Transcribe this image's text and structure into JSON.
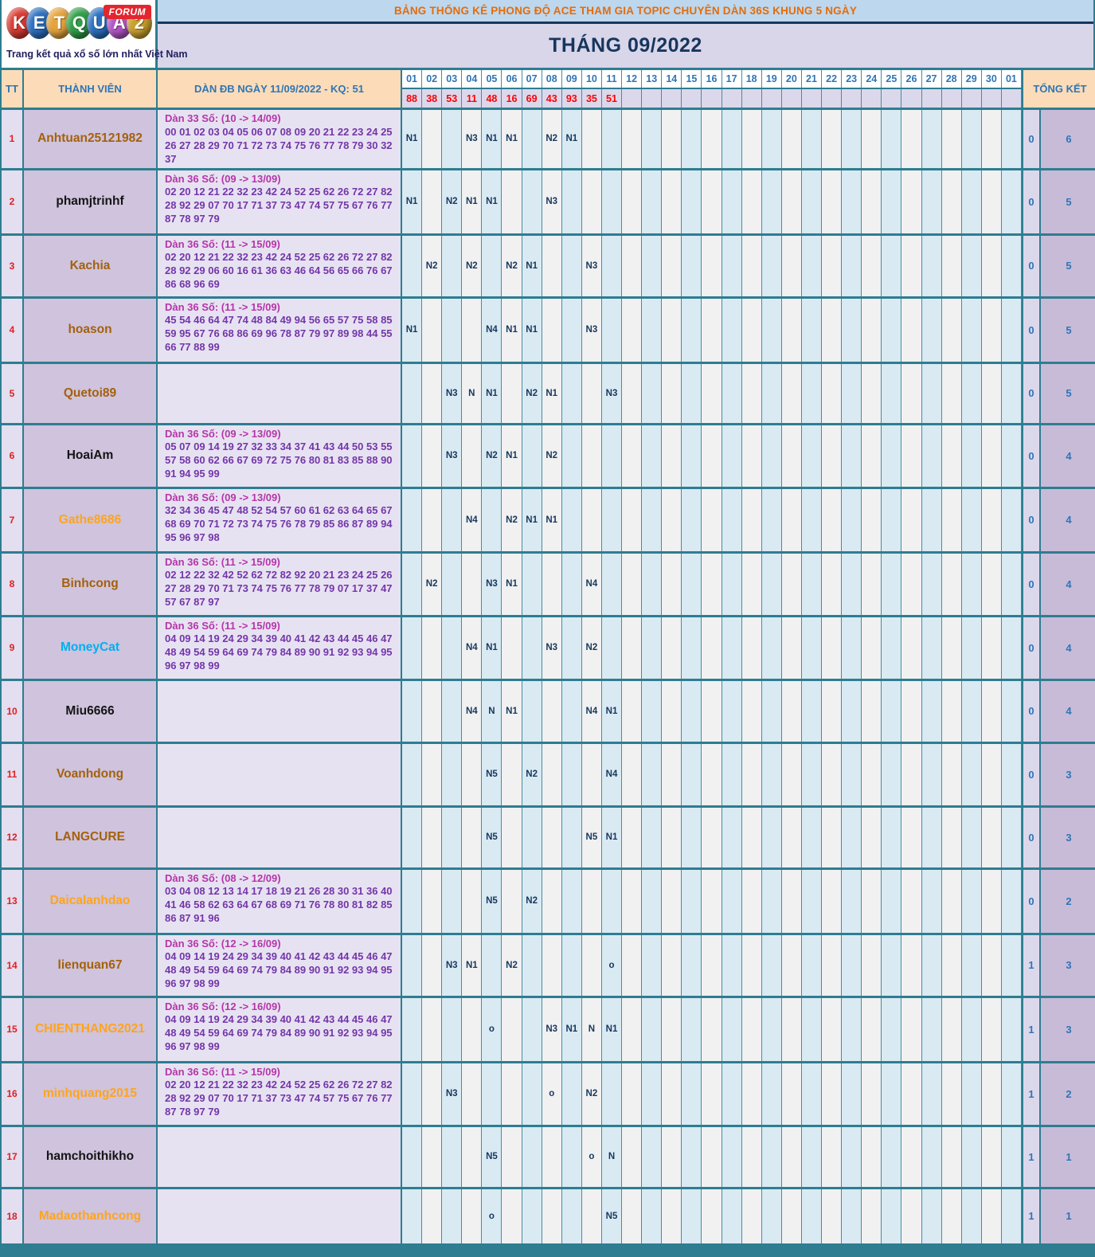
{
  "brand": {
    "logo_letters": [
      {
        "ch": "K",
        "color": "#d93a30"
      },
      {
        "ch": "E",
        "color": "#2b6fc0"
      },
      {
        "ch": "T",
        "color": "#e5a33c"
      },
      {
        "ch": "Q",
        "color": "#2f9e47"
      },
      {
        "ch": "U",
        "color": "#2b6fc0"
      },
      {
        "ch": "A",
        "color": "#b455c8"
      },
      {
        "ch": "2",
        "color": "#c9a02e"
      }
    ],
    "forum_badge": "FORUM",
    "tagline": "Trang kết quả xổ số lớn nhất Việt Nam"
  },
  "banner": {
    "text": "BẢNG THỐNG KÊ PHONG ĐỘ ACE THAM GIA TOPIC CHUYÊN DÀN 36S KHUNG 5 NGÀY"
  },
  "month_title": "THÁNG 09/2022",
  "table": {
    "tt_header": "TT",
    "member_header": "THÀNH VIÊN",
    "dan_header": "DÀN ĐB NGÀY 11/09/2022 - KQ: 51",
    "total_header": "TỔNG KẾT",
    "day_columns": [
      "01",
      "02",
      "03",
      "04",
      "05",
      "06",
      "07",
      "08",
      "09",
      "10",
      "11",
      "12",
      "13",
      "14",
      "15",
      "16",
      "17",
      "18",
      "19",
      "20",
      "21",
      "22",
      "23",
      "24",
      "25",
      "26",
      "27",
      "28",
      "29",
      "30",
      "01"
    ],
    "day_results": [
      "88",
      "38",
      "53",
      "11",
      "48",
      "16",
      "69",
      "43",
      "93",
      "35",
      "51",
      "",
      "",
      "",
      "",
      "",
      "",
      "",
      "",
      "",
      "",
      "",
      "",
      "",
      "",
      "",
      "",
      "",
      "",
      "",
      ""
    ],
    "rows": [
      {
        "tt": "1",
        "member": "Anhtuan25121982",
        "member_color": "#a4610c",
        "dan_title": "Dàn 33 Số: (10 -> 14/09)",
        "dan_numbers": "00 01 02 03 04 05 06 07 08 09 20 21 22 23 24 25 26 27 28 29 70 71 72 73 74 75 76 77 78 79 30 32 37",
        "cells": {
          "1": "N1",
          "4": "N3",
          "5": "N1",
          "6": "N1",
          "8": "N2",
          "9": "N1"
        },
        "total_miss": "0",
        "total_hit": "6"
      },
      {
        "tt": "2",
        "member": "phamjtrinhf",
        "member_color": "#141414",
        "dan_title": "Dàn 36 Số: (09 -> 13/09)",
        "dan_numbers": "02 20 12 21 22 32 23 42 24 52 25 62 26 72 27 82 28 92 29 07 70 17 71 37 73 47 74 57 75 67 76 77 87 78 97 79",
        "cells": {
          "1": "N1",
          "3": "N2",
          "4": "N1",
          "5": "N1",
          "8": "N3"
        },
        "total_miss": "0",
        "total_hit": "5"
      },
      {
        "tt": "3",
        "member": "Kachia",
        "member_color": "#a4610c",
        "dan_title": "Dàn 36 Số: (11 -> 15/09)",
        "dan_numbers": "02 20 12 21 22 32 23 42 24 52 25 62 26 72 27 82 28 92 29 06 60 16 61 36 63 46 64 56 65 66 76 67 86 68 96 69",
        "cells": {
          "2": "N2",
          "4": "N2",
          "6": "N2",
          "7": "N1",
          "10": "N3"
        },
        "total_miss": "0",
        "total_hit": "5"
      },
      {
        "tt": "4",
        "member": "hoason",
        "member_color": "#a4610c",
        "dan_title": "Dàn 36 Số: (11 -> 15/09)",
        "dan_numbers": "45 54 46 64 47 74 48 84 49 94 56 65 57 75 58 85 59 95 67 76 68 86 69 96 78 87 79 97 89 98 44 55 66 77 88 99",
        "cells": {
          "1": "N1",
          "5": "N4",
          "6": "N1",
          "7": "N1",
          "10": "N3"
        },
        "total_miss": "0",
        "total_hit": "5"
      },
      {
        "tt": "5",
        "member": "Quetoi89",
        "member_color": "#a4610c",
        "dan_title": "",
        "dan_numbers": "",
        "cells": {
          "3": "N3",
          "4": "N",
          "5": "N1",
          "7": "N2",
          "8": "N1",
          "11": "N3"
        },
        "total_miss": "0",
        "total_hit": "5"
      },
      {
        "tt": "6",
        "member": "HoaiAm",
        "member_color": "#141414",
        "dan_title": "Dàn 36 Số: (09 -> 13/09)",
        "dan_numbers": "05 07 09 14 19 27 32 33 34 37 41 43 44 50 53 55 57 58 60 62 66 67 69 72 75 76 80 81 83 85 88 90 91 94 95 99",
        "cells": {
          "3": "N3",
          "5": "N2",
          "6": "N1",
          "8": "N2"
        },
        "total_miss": "0",
        "total_hit": "4"
      },
      {
        "tt": "7",
        "member": "Gathe8686",
        "member_color": "#ffa41c",
        "dan_title": "Dàn 36 Số: (09 -> 13/09)",
        "dan_numbers": "32 34 36 45 47 48 52 54 57 60 61 62 63 64 65 67 68 69 70 71 72 73 74 75 76 78 79 85 86 87 89 94 95 96 97 98",
        "cells": {
          "4": "N4",
          "6": "N2",
          "7": "N1",
          "8": "N1"
        },
        "total_miss": "0",
        "total_hit": "4"
      },
      {
        "tt": "8",
        "member": "Binhcong",
        "member_color": "#a4610c",
        "dan_title": "Dàn 36 Số: (11 -> 15/09)",
        "dan_numbers": "02 12 22 32 42 52 62 72 82 92 20 21 23 24 25 26 27 28 29 70 71 73 74 75 76 77 78 79 07 17 37 47 57 67 87 97",
        "cells": {
          "2": "N2",
          "5": "N3",
          "6": "N1",
          "10": "N4"
        },
        "total_miss": "0",
        "total_hit": "4"
      },
      {
        "tt": "9",
        "member": "MoneyCat",
        "member_color": "#00b0f0",
        "dan_title": "Dàn 36 Số: (11 -> 15/09)",
        "dan_numbers": "04 09 14 19 24 29 34 39 40 41 42 43 44 45 46 47 48 49 54 59 64 69 74 79 84 89 90 91 92 93 94 95 96 97 98 99",
        "cells": {
          "4": "N4",
          "5": "N1",
          "8": "N3",
          "10": "N2"
        },
        "total_miss": "0",
        "total_hit": "4"
      },
      {
        "tt": "10",
        "member": "Miu6666",
        "member_color": "#141414",
        "dan_title": "",
        "dan_numbers": "",
        "cells": {
          "4": "N4",
          "5": "N",
          "6": "N1",
          "10": "N4",
          "11": "N1"
        },
        "total_miss": "0",
        "total_hit": "4"
      },
      {
        "tt": "11",
        "member": "Voanhdong",
        "member_color": "#a4610c",
        "dan_title": "",
        "dan_numbers": "",
        "cells": {
          "5": "N5",
          "7": "N2",
          "11": "N4"
        },
        "total_miss": "0",
        "total_hit": "3"
      },
      {
        "tt": "12",
        "member": "LANGCURE",
        "member_color": "#a4610c",
        "dan_title": "",
        "dan_numbers": "",
        "cells": {
          "5": "N5",
          "10": "N5",
          "11": "N1"
        },
        "total_miss": "0",
        "total_hit": "3"
      },
      {
        "tt": "13",
        "member": "Daicalanhdao",
        "member_color": "#ffa41c",
        "dan_title": "Dàn 36 Số: (08 -> 12/09)",
        "dan_numbers": "03 04 08 12 13 14 17 18 19 21 26 28 30 31 36 40 41 46 58 62 63 64 67 68 69 71 76 78 80 81 82 85 86 87 91 96",
        "cells": {
          "5": "N5",
          "7": "N2"
        },
        "total_miss": "0",
        "total_hit": "2"
      },
      {
        "tt": "14",
        "member": "lienquan67",
        "member_color": "#a4610c",
        "dan_title": "Dàn 36 Số: (12 -> 16/09)",
        "dan_numbers": "04 09 14 19 24 29 34 39 40 41 42 43 44 45 46 47 48 49 54 59 64 69 74 79 84 89 90 91 92 93 94 95 96 97 98 99",
        "cells": {
          "3": "N3",
          "4": "N1",
          "6": "N2",
          "11": "o"
        },
        "total_miss": "1",
        "total_hit": "3"
      },
      {
        "tt": "15",
        "member": "CHIENTHANG2021",
        "member_color": "#ffa41c",
        "dan_title": "Dàn 36 Số: (12 -> 16/09)",
        "dan_numbers": "04 09 14 19 24 29 34 39 40 41 42 43 44 45 46 47 48 49 54 59 64 69 74 79 84 89 90 91 92 93 94 95 96 97 98 99",
        "cells": {
          "5": "o",
          "8": "N3",
          "9": "N1",
          "10": "N",
          "11": "N1"
        },
        "total_miss": "1",
        "total_hit": "3"
      },
      {
        "tt": "16",
        "member": "minhquang2015",
        "member_color": "#ffa41c",
        "dan_title": "Dàn 36 Số: (11 -> 15/09)",
        "dan_numbers": "02 20 12 21 22 32 23 42 24 52 25 62 26 72 27 82 28 92 29 07 70 17 71 37 73 47 74 57 75 67 76 77 87 78 97 79",
        "cells": {
          "3": "N3",
          "8": "o",
          "10": "N2"
        },
        "total_miss": "1",
        "total_hit": "2"
      },
      {
        "tt": "17",
        "member": "hamchoithikho",
        "member_color": "#141414",
        "dan_title": "",
        "dan_numbers": "",
        "cells": {
          "5": "N5",
          "10": "o",
          "11": "N"
        },
        "total_miss": "1",
        "total_hit": "1"
      },
      {
        "tt": "18",
        "member": "Madaothanhcong",
        "member_color": "#ffa41c",
        "dan_title": "",
        "dan_numbers": "",
        "cells": {
          "5": "o",
          "11": "N5"
        },
        "total_miss": "1",
        "total_hit": "1"
      }
    ]
  },
  "colors": {
    "teal_border": "#2e7d90",
    "banner_bg": "#bdd7ee",
    "banner_text": "#e36c0a",
    "title_bg": "#d9d6ea",
    "title_text": "#17365d",
    "header_peach_bg": "#fcdcb8",
    "header_blue_text": "#2e75b6",
    "result_red": "#ff0000",
    "result_row_bg": "#dcd8ec",
    "day_col_blue_bg": "#d9eaf3",
    "day_col_gray_bg": "#f1f1f1",
    "day_value_navy": "#17375e",
    "tt_col_bg": "#e3def0",
    "member_col_bg": "#cfc3dd",
    "dan_col_bg": "#e7e2f2",
    "dan_title_purple": "#b535a8",
    "dan_numbers_purple": "#7336a8",
    "total_col1_bg": "#dcd8ec",
    "total_col2_bg": "#c8bbd8",
    "tt_number_red": "#e02020"
  }
}
